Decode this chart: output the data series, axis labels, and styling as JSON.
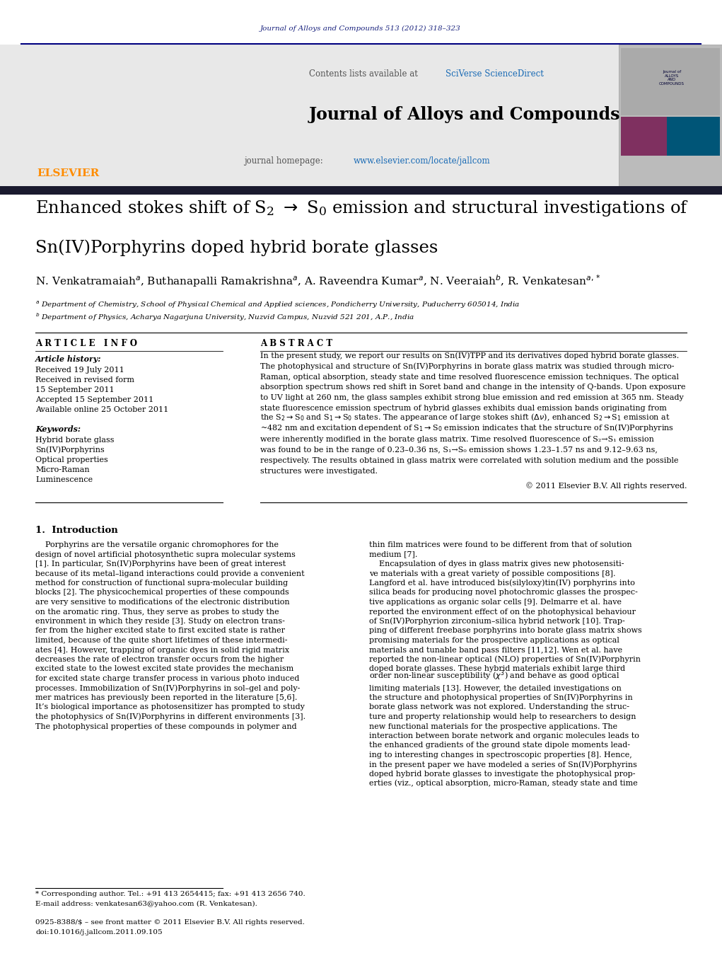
{
  "page_width": 10.21,
  "page_height": 13.51,
  "background_color": "#ffffff",
  "journal_ref_color": "#1a237e",
  "journal_ref_text": "Journal of Alloys and Compounds 513 (2012) 318–323",
  "header_bg_color": "#e8e8e8",
  "elsevier_color": "#ff8c00",
  "sciverse_color": "#1a6bb5",
  "journal_title": "Journal of Alloys and Compounds",
  "journal_homepage_url": "www.elsevier.com/locate/jallcom",
  "sciverse_text": "SciVerse ScienceDirect",
  "dark_bar_color": "#1a1a2e",
  "article_info_header": "A R T I C L E   I N F O",
  "abstract_header": "A B S T R A C T",
  "article_history": "Article history:",
  "received_text": "Received 19 July 2011",
  "revised_text": "Received in revised form",
  "revised_date": "15 September 2011",
  "accepted_text": "Accepted 15 September 2011",
  "available_text": "Available online 25 October 2011",
  "keywords_header": "Keywords:",
  "keywords": [
    "Hybrid borate glass",
    "Sn(IV)Porphyrins",
    "Optical properties",
    "Micro-Raman",
    "Luminescence"
  ],
  "copyright_text": "© 2011 Elsevier B.V. All rights reserved.",
  "footnote1": "* Corresponding author. Tel.: +91 413 2654415; fax: +91 413 2656 740.",
  "footnote2": "E-mail address: venkatesan63@yahoo.com (R. Venkatesan).",
  "footer1": "0925-8388/$ – see front matter © 2011 Elsevier B.V. All rights reserved.",
  "footer2": "doi:10.1016/j.jallcom.2011.09.105"
}
